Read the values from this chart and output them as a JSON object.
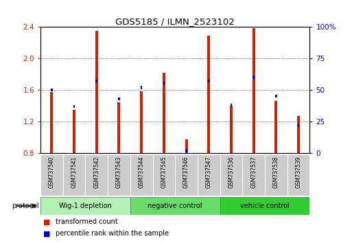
{
  "title": "GDS5185 / ILMN_2523102",
  "samples": [
    "GSM737540",
    "GSM737541",
    "GSM737542",
    "GSM737543",
    "GSM737544",
    "GSM737545",
    "GSM737546",
    "GSM737547",
    "GSM737536",
    "GSM737537",
    "GSM737538",
    "GSM737539"
  ],
  "transformed_count": [
    1.57,
    1.35,
    2.35,
    1.44,
    1.58,
    1.82,
    0.97,
    2.29,
    1.4,
    2.38,
    1.46,
    1.27
  ],
  "percentile_rank": [
    50,
    37,
    57,
    43,
    52,
    55,
    2,
    57,
    38,
    60,
    45,
    22
  ],
  "groups": [
    {
      "label": "Wig-1 depletion",
      "start": 0,
      "end": 4,
      "color": "#b3f0b3"
    },
    {
      "label": "negative control",
      "start": 4,
      "end": 8,
      "color": "#66dd66"
    },
    {
      "label": "vehicle control",
      "start": 8,
      "end": 12,
      "color": "#33cc33"
    }
  ],
  "bar_color_red": "#cc2200",
  "bar_color_blue": "#0000cc",
  "ylim_left": [
    0.8,
    2.4
  ],
  "ylim_right": [
    0,
    100
  ],
  "yticks_left": [
    0.8,
    1.2,
    1.6,
    2.0,
    2.4
  ],
  "yticks_right": [
    0,
    25,
    50,
    75,
    100
  ],
  "ytick_labels_right": [
    "0",
    "25",
    "50",
    "75",
    "100%"
  ],
  "bar_width": 0.12,
  "blue_bar_width": 0.08,
  "background_color": "#ffffff",
  "plot_bg_color": "#ffffff",
  "grid_color": "#000000",
  "sample_box_color": "#cccccc"
}
